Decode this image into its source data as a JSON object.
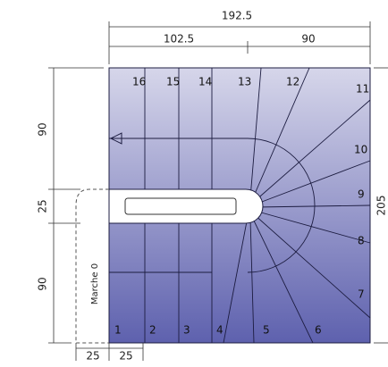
{
  "dimensions": {
    "total_width": "192.5",
    "left_width": "102.5",
    "right_width": "90",
    "left_upper": "90",
    "left_middle": "25",
    "left_lower": "90",
    "total_height": "205",
    "bottom_left": "25",
    "bottom_right": "25"
  },
  "steps": [
    "1",
    "2",
    "3",
    "4",
    "5",
    "6",
    "7",
    "8",
    "9",
    "10",
    "11",
    "12",
    "13",
    "14",
    "15",
    "16"
  ],
  "landing_label": "Marche 0"
}
